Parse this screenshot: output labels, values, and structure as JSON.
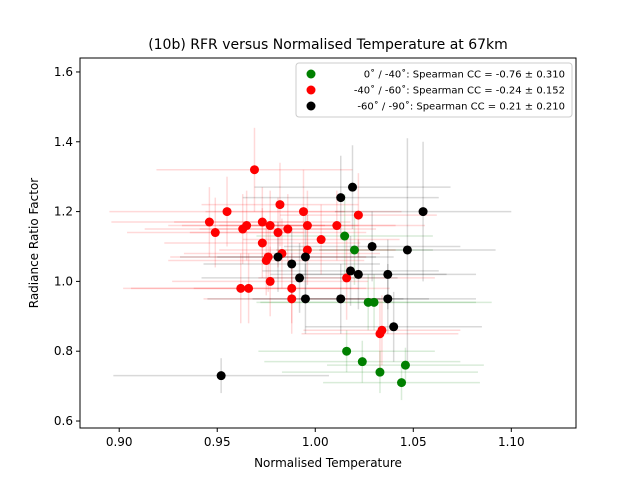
{
  "chart_data": {
    "type": "scatter",
    "title": "(10b) RFR versus Normalised Temperature at 67km",
    "xlabel": "Normalised Temperature",
    "ylabel": "Radiance Ratio Factor",
    "xlim": [
      0.88,
      1.133
    ],
    "ylim": [
      0.58,
      1.64
    ],
    "xticks": [
      {
        "value": 0.9,
        "label": "0.90"
      },
      {
        "value": 0.95,
        "label": "0.95"
      },
      {
        "value": 1.0,
        "label": "1.00"
      },
      {
        "value": 1.05,
        "label": "1.05"
      },
      {
        "value": 1.1,
        "label": "1.10"
      }
    ],
    "yticks": [
      {
        "value": 0.6,
        "label": "0.6"
      },
      {
        "value": 0.8,
        "label": "0.8"
      },
      {
        "value": 1.0,
        "label": "1.0"
      },
      {
        "value": 1.2,
        "label": "1.2"
      },
      {
        "value": 1.4,
        "label": "1.4"
      },
      {
        "value": 1.6,
        "label": "1.6"
      }
    ],
    "grid": false,
    "legend_position": "upper right",
    "series": [
      {
        "name": "0˚ / -40˚: Spearman CC = -0.76 ± 0.310",
        "color": "#008000",
        "points": [
          {
            "x": 1.015,
            "y": 1.13,
            "xerr": 0.045,
            "yerr": 0.12
          },
          {
            "x": 1.02,
            "y": 1.09,
            "xerr": 0.04,
            "yerr": 0.1
          },
          {
            "x": 1.027,
            "y": 0.94,
            "xerr": 0.055,
            "yerr": 0.08
          },
          {
            "x": 1.03,
            "y": 0.94,
            "xerr": 0.06,
            "yerr": 0.08
          },
          {
            "x": 1.016,
            "y": 0.8,
            "xerr": 0.045,
            "yerr": 0.06
          },
          {
            "x": 1.024,
            "y": 0.77,
            "xerr": 0.05,
            "yerr": 0.06
          },
          {
            "x": 1.033,
            "y": 0.74,
            "xerr": 0.05,
            "yerr": 0.06
          },
          {
            "x": 1.046,
            "y": 0.76,
            "xerr": 0.04,
            "yerr": 0.05
          },
          {
            "x": 1.044,
            "y": 0.71,
            "xerr": 0.04,
            "yerr": 0.05
          }
        ]
      },
      {
        "name": "-40˚ / -60˚: Spearman CC = -0.24 ± 0.152",
        "color": "#ff0000",
        "points": [
          {
            "x": 0.969,
            "y": 1.32,
            "xerr": 0.05,
            "yerr": 0.12
          },
          {
            "x": 0.946,
            "y": 1.17,
            "xerr": 0.05,
            "yerr": 0.1
          },
          {
            "x": 0.949,
            "y": 1.14,
            "xerr": 0.045,
            "yerr": 0.1
          },
          {
            "x": 0.955,
            "y": 1.2,
            "xerr": 0.06,
            "yerr": 0.1
          },
          {
            "x": 0.963,
            "y": 1.15,
            "xerr": 0.05,
            "yerr": 0.1
          },
          {
            "x": 0.965,
            "y": 1.16,
            "xerr": 0.04,
            "yerr": 0.1
          },
          {
            "x": 0.973,
            "y": 1.17,
            "xerr": 0.045,
            "yerr": 0.1
          },
          {
            "x": 0.977,
            "y": 1.16,
            "xerr": 0.045,
            "yerr": 0.1
          },
          {
            "x": 0.982,
            "y": 1.22,
            "xerr": 0.04,
            "yerr": 0.12
          },
          {
            "x": 0.981,
            "y": 1.14,
            "xerr": 0.045,
            "yerr": 0.1
          },
          {
            "x": 0.986,
            "y": 1.15,
            "xerr": 0.045,
            "yerr": 0.1
          },
          {
            "x": 0.994,
            "y": 1.2,
            "xerr": 0.05,
            "yerr": 0.12
          },
          {
            "x": 0.996,
            "y": 1.16,
            "xerr": 0.045,
            "yerr": 0.1
          },
          {
            "x": 0.973,
            "y": 1.11,
            "xerr": 0.05,
            "yerr": 0.1
          },
          {
            "x": 0.975,
            "y": 1.06,
            "xerr": 0.05,
            "yerr": 0.1
          },
          {
            "x": 0.976,
            "y": 1.07,
            "xerr": 0.05,
            "yerr": 0.1
          },
          {
            "x": 0.983,
            "y": 1.08,
            "xerr": 0.05,
            "yerr": 0.1
          },
          {
            "x": 0.996,
            "y": 1.09,
            "xerr": 0.045,
            "yerr": 0.1
          },
          {
            "x": 1.003,
            "y": 1.12,
            "xerr": 0.04,
            "yerr": 0.1
          },
          {
            "x": 1.011,
            "y": 1.16,
            "xerr": 0.045,
            "yerr": 0.1
          },
          {
            "x": 1.022,
            "y": 1.19,
            "xerr": 0.04,
            "yerr": 0.12
          },
          {
            "x": 0.962,
            "y": 0.98,
            "xerr": 0.06,
            "yerr": 0.1
          },
          {
            "x": 0.966,
            "y": 0.98,
            "xerr": 0.06,
            "yerr": 0.1
          },
          {
            "x": 0.977,
            "y": 1.0,
            "xerr": 0.05,
            "yerr": 0.1
          },
          {
            "x": 0.988,
            "y": 0.98,
            "xerr": 0.05,
            "yerr": 0.1
          },
          {
            "x": 0.988,
            "y": 0.95,
            "xerr": 0.045,
            "yerr": 0.1
          },
          {
            "x": 1.016,
            "y": 1.01,
            "xerr": 0.045,
            "yerr": 0.12
          },
          {
            "x": 1.033,
            "y": 0.85,
            "xerr": 0.04,
            "yerr": 0.1
          },
          {
            "x": 1.034,
            "y": 0.86,
            "xerr": 0.04,
            "yerr": 0.1
          }
        ]
      },
      {
        "name": "-60˚ / -90˚: Spearman CC =  0.21 ± 0.210",
        "color": "#000000",
        "points": [
          {
            "x": 1.019,
            "y": 1.27,
            "xerr": 0.05,
            "yerr": 0.12
          },
          {
            "x": 1.013,
            "y": 1.24,
            "xerr": 0.05,
            "yerr": 0.12
          },
          {
            "x": 1.055,
            "y": 1.2,
            "xerr": 0.045,
            "yerr": 0.2
          },
          {
            "x": 1.029,
            "y": 1.1,
            "xerr": 0.045,
            "yerr": 0.1
          },
          {
            "x": 1.047,
            "y": 1.09,
            "xerr": 0.045,
            "yerr": 0.32
          },
          {
            "x": 0.981,
            "y": 1.07,
            "xerr": 0.05,
            "yerr": 0.1
          },
          {
            "x": 0.995,
            "y": 1.07,
            "xerr": 0.045,
            "yerr": 0.12
          },
          {
            "x": 0.988,
            "y": 1.05,
            "xerr": 0.045,
            "yerr": 0.1
          },
          {
            "x": 1.018,
            "y": 1.03,
            "xerr": 0.045,
            "yerr": 0.1
          },
          {
            "x": 1.022,
            "y": 1.02,
            "xerr": 0.045,
            "yerr": 0.1
          },
          {
            "x": 1.037,
            "y": 1.02,
            "xerr": 0.045,
            "yerr": 0.1
          },
          {
            "x": 0.992,
            "y": 1.01,
            "xerr": 0.05,
            "yerr": 0.1
          },
          {
            "x": 0.995,
            "y": 0.95,
            "xerr": 0.05,
            "yerr": 0.1
          },
          {
            "x": 1.013,
            "y": 0.95,
            "xerr": 0.045,
            "yerr": 0.1
          },
          {
            "x": 1.037,
            "y": 0.95,
            "xerr": 0.045,
            "yerr": 0.1
          },
          {
            "x": 1.04,
            "y": 0.87,
            "xerr": 0.045,
            "yerr": 0.1
          },
          {
            "x": 0.952,
            "y": 0.73,
            "xerr": 0.055,
            "yerr": 0.05
          }
        ]
      }
    ]
  }
}
